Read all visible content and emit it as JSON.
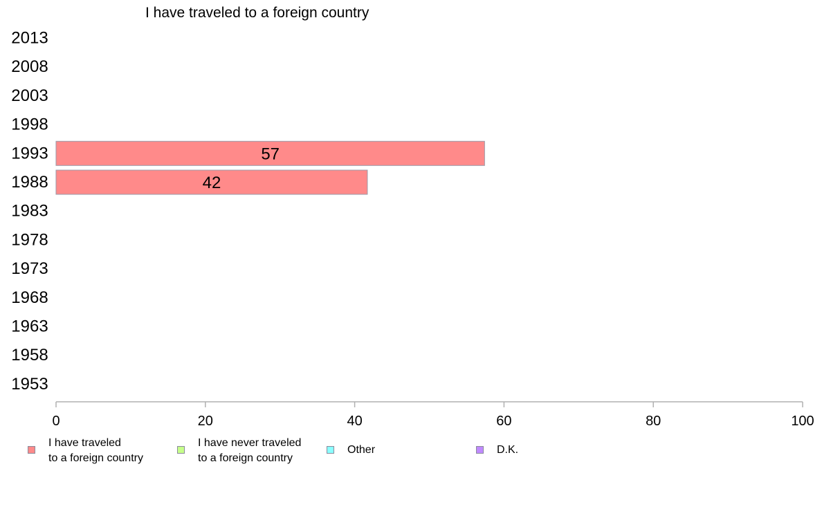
{
  "chart_data": {
    "type": "bar",
    "orientation": "horizontal",
    "title": "I have traveled to a foreign country",
    "xlabel": "",
    "ylabel": "",
    "categories": [
      "2013",
      "2008",
      "2003",
      "1998",
      "1993",
      "1988",
      "1983",
      "1978",
      "1973",
      "1968",
      "1963",
      "1958",
      "1953"
    ],
    "xlim": [
      0,
      100
    ],
    "xticks": [
      "0",
      "20",
      "40",
      "60",
      "80",
      "100"
    ],
    "grid": false,
    "legend_position": "bottom",
    "series": [
      {
        "name": "I have traveled\nto a foreign country",
        "color": "#ff8a8a",
        "values": [
          null,
          null,
          null,
          null,
          57.4,
          41.7,
          null,
          null,
          null,
          null,
          null,
          null,
          null
        ],
        "labels": [
          null,
          null,
          null,
          null,
          "57",
          "42",
          null,
          null,
          null,
          null,
          null,
          null,
          null
        ]
      },
      {
        "name": "I have never traveled\nto a foreign country",
        "color": "#c6ff8a",
        "values": [
          null,
          null,
          null,
          null,
          null,
          null,
          null,
          null,
          null,
          null,
          null,
          null,
          null
        ],
        "labels": [
          null,
          null,
          null,
          null,
          null,
          null,
          null,
          null,
          null,
          null,
          null,
          null,
          null
        ]
      },
      {
        "name": "Other",
        "color": "#8affff",
        "values": [
          null,
          null,
          null,
          null,
          null,
          null,
          null,
          null,
          null,
          null,
          null,
          null,
          null
        ],
        "labels": [
          null,
          null,
          null,
          null,
          null,
          null,
          null,
          null,
          null,
          null,
          null,
          null,
          null
        ]
      },
      {
        "name": "D.K.",
        "color": "#c08aff",
        "values": [
          null,
          null,
          null,
          null,
          null,
          null,
          null,
          null,
          null,
          null,
          null,
          null,
          null
        ],
        "labels": [
          null,
          null,
          null,
          null,
          null,
          null,
          null,
          null,
          null,
          null,
          null,
          null,
          null
        ]
      }
    ]
  }
}
